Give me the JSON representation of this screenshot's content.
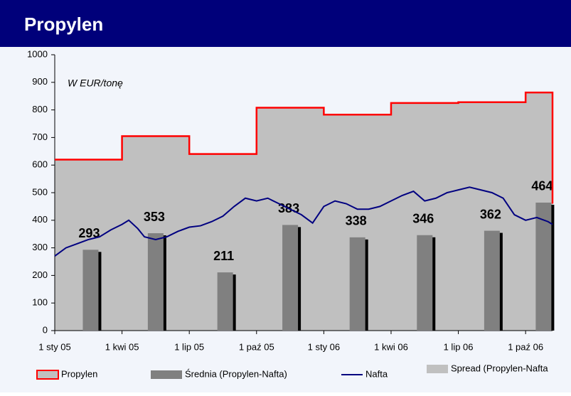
{
  "chart_data": {
    "type": "combo",
    "title": "Propylen",
    "annotation": "W EUR/tonę",
    "xlim": [
      0,
      22.2
    ],
    "xticks": [
      {
        "value": 0,
        "label": "1 sty 05"
      },
      {
        "value": 3,
        "label": "1 kwi 05"
      },
      {
        "value": 6,
        "label": "1 lip 05"
      },
      {
        "value": 9,
        "label": "1 paź 05"
      },
      {
        "value": 12,
        "label": "1 sty 06"
      },
      {
        "value": 15,
        "label": "1 kwi 06"
      },
      {
        "value": 18,
        "label": "1 lip 06"
      },
      {
        "value": 21,
        "label": "1 paź 06"
      }
    ],
    "ylim": [
      0,
      1000
    ],
    "yticks": [
      0,
      100,
      200,
      300,
      400,
      500,
      600,
      700,
      800,
      900,
      1000
    ],
    "series": [
      {
        "name": "Propylen",
        "type": "line",
        "color": "#ff0000",
        "fill": "#c0c0c0",
        "x": [
          0,
          3,
          3,
          6,
          6,
          9,
          9,
          12,
          12,
          15,
          15,
          18,
          18,
          21,
          21,
          22.2,
          22.2
        ],
        "values": [
          620,
          620,
          705,
          705,
          640,
          640,
          808,
          808,
          783,
          783,
          825,
          825,
          828,
          828,
          863,
          863,
          460
        ]
      },
      {
        "name": "Średnia (Propylen-Nafta)",
        "type": "bar",
        "color": "#808080",
        "x": [
          1.6,
          4.5,
          7.6,
          10.5,
          13.5,
          16.5,
          19.5,
          21.8
        ],
        "values": [
          293,
          353,
          211,
          383,
          338,
          346,
          362,
          464
        ]
      },
      {
        "name": "Nafta",
        "type": "line",
        "color": "#000080",
        "x": [
          0,
          0.5,
          1,
          1.5,
          2,
          2.5,
          3,
          3.3,
          3.7,
          4,
          4.5,
          5,
          5.5,
          6,
          6.5,
          7,
          7.5,
          8,
          8.5,
          9,
          9.5,
          10,
          10.5,
          11,
          11.5,
          12,
          12.5,
          13,
          13.5,
          14,
          14.5,
          15,
          15.5,
          16,
          16.5,
          17,
          17.5,
          18,
          18.5,
          19,
          19.5,
          20,
          20.5,
          21,
          21.5,
          22,
          22.2
        ],
        "values": [
          270,
          300,
          315,
          330,
          340,
          365,
          385,
          400,
          370,
          340,
          330,
          340,
          360,
          375,
          380,
          395,
          415,
          450,
          480,
          470,
          480,
          460,
          440,
          420,
          390,
          450,
          470,
          460,
          440,
          440,
          450,
          470,
          490,
          505,
          470,
          480,
          500,
          510,
          520,
          510,
          500,
          480,
          420,
          400,
          410,
          395,
          385
        ]
      }
    ],
    "area_legend": {
      "name": "Spread (Propylen-Nafta",
      "color": "#c0c0c0"
    }
  }
}
